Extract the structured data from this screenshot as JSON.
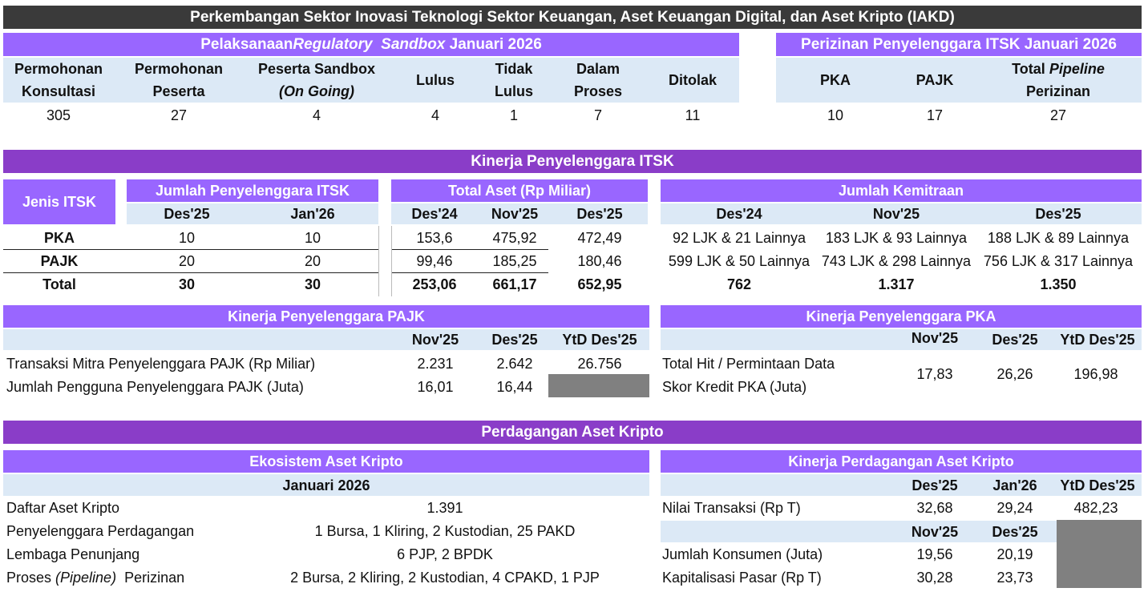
{
  "title": "Perkembangan Sektor Inovasi Teknologi Sektor Keuangan, Aset Keuangan Digital, dan Aset Kripto (IAKD)",
  "sandbox": {
    "header_pre": "Pelaksanaan ",
    "header_em": "Regulatory  Sandbox",
    "header_post": " Januari 2026",
    "columns": [
      {
        "l1": "Permohonan",
        "l2": "Konsultasi",
        "value": "305"
      },
      {
        "l1": "Permohonan",
        "l2": "Peserta",
        "value": "27"
      },
      {
        "l1": "Peserta Sandbox",
        "l2": "(On Going)",
        "value": "4"
      },
      {
        "l1": "Lulus",
        "l2": "",
        "value": "4"
      },
      {
        "l1": "Tidak",
        "l2": "Lulus",
        "value": "1"
      },
      {
        "l1": "Dalam",
        "l2": "Proses",
        "value": "7"
      },
      {
        "l1": "Ditolak",
        "l2": "",
        "value": "11"
      }
    ]
  },
  "perizinan": {
    "header": "Perizinan Penyelenggara ITSK Januari 2026",
    "pka": "PKA",
    "pajk": "PAJK",
    "total_pre": "Total ",
    "total_em": "Pipeline",
    "total_l2": "Perizinan",
    "values": [
      "10",
      "17",
      "27"
    ]
  },
  "kinerja_itsk": {
    "header": "Kinerja Penyelenggara ITSK",
    "jenis_header": "Jenis ITSK",
    "jumlah_header": "Jumlah Penyelenggara ITSK",
    "jumlah_periods": [
      "Des'25",
      "Jan'26"
    ],
    "aset_header": "Total Aset (Rp Miliar)",
    "aset_periods": [
      "Des'24",
      "Nov'25",
      "Des'25"
    ],
    "kemitraan_header": "Jumlah Kemitraan",
    "kemitraan_periods": [
      "Des'24",
      "Nov'25",
      "Des'25"
    ],
    "rows": [
      {
        "name": "PKA",
        "jumlah": [
          "10",
          "10"
        ],
        "aset": [
          "153,6",
          "475,92",
          "472,49"
        ],
        "kemitraan": [
          "92 LJK & 21 Lainnya",
          "183 LJK & 93 Lainnya",
          "188 LJK & 89 Lainnya"
        ]
      },
      {
        "name": "PAJK",
        "jumlah": [
          "20",
          "20"
        ],
        "aset": [
          "99,46",
          "185,25",
          "180,46"
        ],
        "kemitraan": [
          "599 LJK & 50 Lainnya",
          "743 LJK & 298 Lainnya",
          "756 LJK & 317 Lainnya"
        ]
      },
      {
        "name": "Total",
        "jumlah": [
          "30",
          "30"
        ],
        "aset": [
          "253,06",
          "661,17",
          "652,95"
        ],
        "kemitraan": [
          "762",
          "1.317",
          "1.350"
        ]
      }
    ]
  },
  "kinerja_pajk": {
    "header": "Kinerja Penyelenggara PAJK",
    "periods": [
      "Nov'25",
      "Des'25",
      "YtD Des'25"
    ],
    "rows": [
      {
        "label": "Transaksi Mitra Penyelenggara PAJK (Rp Miliar)",
        "values": [
          "2.231",
          "2.642",
          "26.756"
        ]
      },
      {
        "label": "Jumlah Pengguna Penyelenggara PAJK (Juta)",
        "values": [
          "16,01",
          "16,44"
        ]
      }
    ]
  },
  "kinerja_pka": {
    "header": "Kinerja Penyelenggara PKA",
    "periods": [
      "Nov'25",
      "Des'25",
      "YtD Des'25"
    ],
    "label_l1": "Total Hit / Permintaan Data",
    "label_l2": "Skor Kredit PKA (Juta)",
    "values": [
      "17,83",
      "26,26",
      "196,98"
    ]
  },
  "kripto": {
    "header": "Perdagangan Aset Kripto",
    "ekosistem_header": "Ekosistem Aset Kripto",
    "ekosistem_period": "Januari 2026",
    "ekosistem_rows": [
      {
        "label": "Daftar Aset Kripto",
        "value": "1.391"
      },
      {
        "label": "Penyelenggara Perdagangan",
        "value": "1 Bursa, 1 Kliring, 2 Kustodian, 25 PAKD"
      },
      {
        "label": "Lembaga Penunjang",
        "value": "6 PJP, 2 BPDK"
      },
      {
        "label_pre": "Proses ",
        "label_em": "(Pipeline)",
        "label_post": "  Perizinan",
        "value": "2 Bursa, 2 Kliring, 2 Kustodian, 4 CPAKD, 1 PJP"
      }
    ],
    "perdagangan_header": "Kinerja Perdagangan Aset Kripto",
    "periods_top": [
      "Des'25",
      "Jan'26",
      "YtD Des'25"
    ],
    "nilai_label": "Nilai Transaksi (Rp T)",
    "nilai_values": [
      "32,68",
      "29,24",
      "482,23"
    ],
    "periods_bottom": [
      "Nov'25",
      "Des'25"
    ],
    "konsumen_label": "Jumlah Konsumen (Juta)",
    "konsumen_values": [
      "19,56",
      "20,19"
    ],
    "kapitalisasi_label": "Kapitalisasi Pasar (Rp T)",
    "kapitalisasi_values": [
      "30,28",
      "23,73"
    ]
  }
}
